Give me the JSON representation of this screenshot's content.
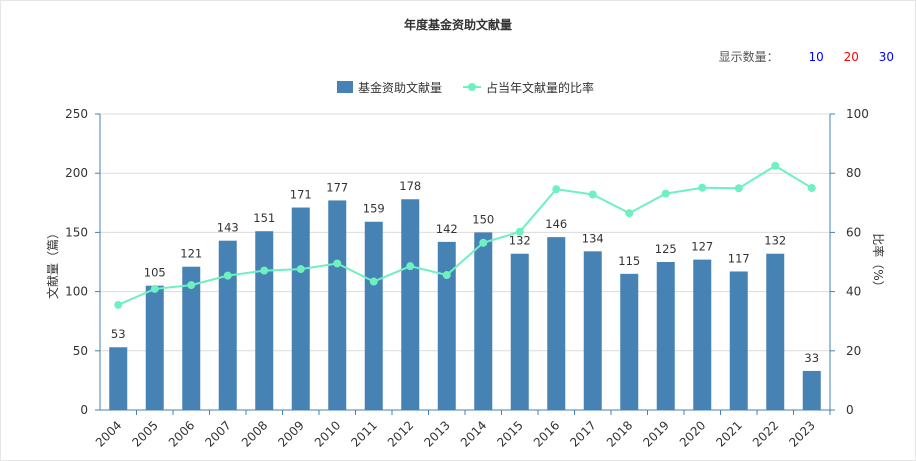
{
  "title": "年度基金资助文献量",
  "display": {
    "label": "显示数量：",
    "options": [
      {
        "label": "10",
        "color": "#0000ff"
      },
      {
        "label": "20",
        "color": "#ff0000"
      },
      {
        "label": "30",
        "color": "#0000ff"
      }
    ]
  },
  "chart_data": {
    "type": "bar",
    "categories": [
      "2004",
      "2005",
      "2006",
      "2007",
      "2008",
      "2009",
      "2010",
      "2011",
      "2012",
      "2013",
      "2014",
      "2015",
      "2016",
      "2017",
      "2018",
      "2019",
      "2020",
      "2021",
      "2022",
      "2023"
    ],
    "series": [
      {
        "name": "基金资助文献量",
        "type": "bar",
        "axis": "left",
        "color": "#4682b4",
        "values": [
          53,
          105,
          121,
          143,
          151,
          171,
          177,
          159,
          178,
          142,
          150,
          132,
          146,
          134,
          115,
          125,
          127,
          117,
          132,
          33
        ]
      },
      {
        "name": "占当年文献量的比率",
        "type": "line",
        "axis": "right",
        "color": "#6ff0c0",
        "values": [
          35.5,
          40.9,
          42.2,
          45.4,
          47.1,
          47.6,
          49.5,
          43.4,
          48.6,
          45.6,
          56.5,
          60.2,
          74.6,
          72.8,
          66.5,
          73.1,
          75.1,
          74.9,
          82.5,
          75.0
        ]
      }
    ],
    "ylabel": "文献量（篇）",
    "y2label": "比率（%）",
    "ylim": [
      0,
      250
    ],
    "y2lim": [
      0,
      100
    ],
    "yticks": [
      0,
      50,
      100,
      150,
      200,
      250
    ],
    "y2ticks": [
      0,
      20,
      40,
      60,
      80,
      100
    ],
    "grid": true,
    "legend_position": "top-center"
  }
}
